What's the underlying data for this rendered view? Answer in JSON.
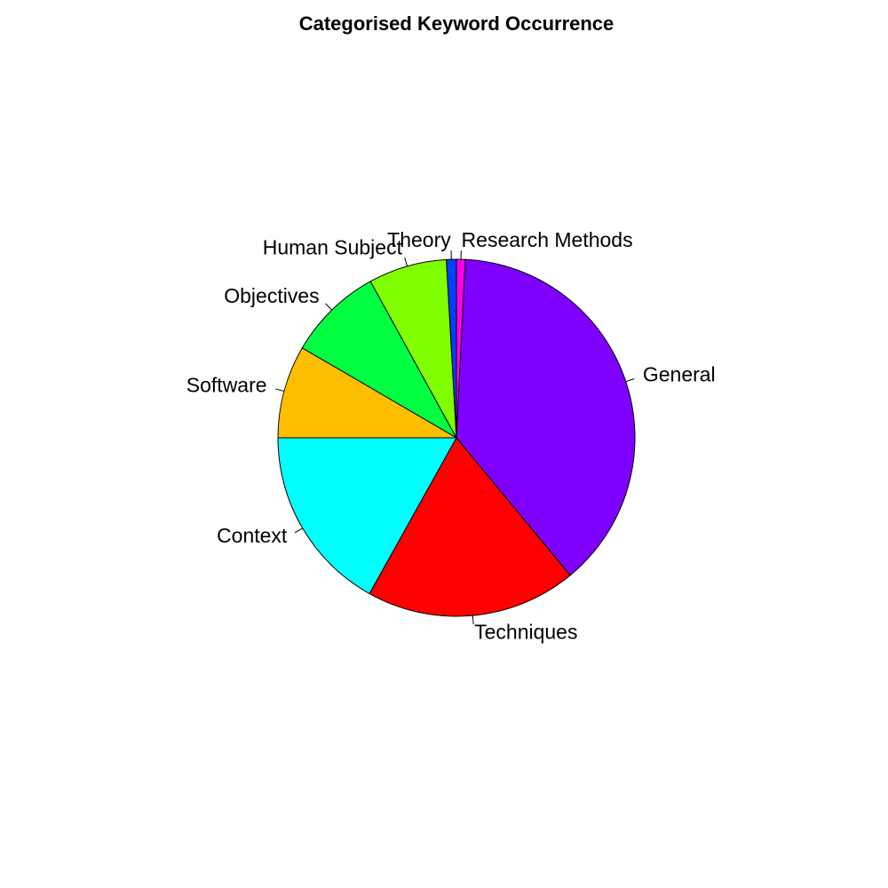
{
  "chart_data": {
    "type": "pie",
    "title": "Categorised Keyword Occurrence",
    "start": "top",
    "direction": "clockwise",
    "slices": [
      {
        "label": "Research Methods",
        "value": 0.8,
        "color": "#FF00E6"
      },
      {
        "label": "General",
        "value": 38.2,
        "color": "#8000FF"
      },
      {
        "label": "Techniques",
        "value": 19.1,
        "color": "#FF0000"
      },
      {
        "label": "Context",
        "value": 16.9,
        "color": "#00FFFF"
      },
      {
        "label": "Software",
        "value": 8.4,
        "color": "#FFBF00"
      },
      {
        "label": "Objectives",
        "value": 8.6,
        "color": "#00FF40"
      },
      {
        "label": "Human Subject",
        "value": 7.1,
        "color": "#80FF00"
      },
      {
        "label": "Theory",
        "value": 0.9,
        "color": "#0040FF"
      }
    ]
  }
}
